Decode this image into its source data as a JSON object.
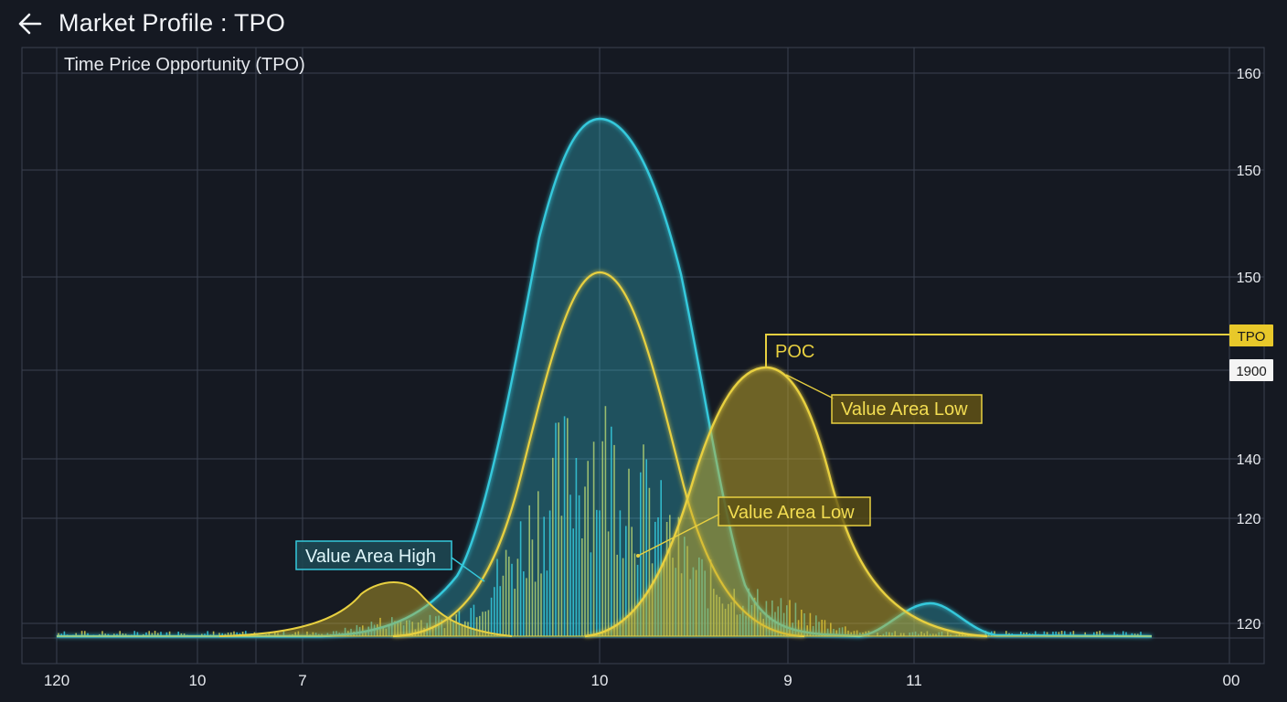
{
  "header": {
    "title": "Market Profile : TPO",
    "back_icon": "arrow-left-icon"
  },
  "colors": {
    "background": "#151922",
    "grid": "#3a4150",
    "cyan": "#35c9dc",
    "yellow": "#e8d040",
    "text": "#e6e9ee"
  },
  "chart_data": {
    "type": "area",
    "title": "Time Price Opportunity (TPO)",
    "x_tick_labels": [
      "120",
      "10",
      "7",
      "10",
      "9",
      "11",
      "00"
    ],
    "y_tick_labels": [
      "160",
      "150",
      "150",
      "140",
      "120",
      "120"
    ],
    "grid": true,
    "series": [
      {
        "name": "",
        "color": "#35c9dc"
      },
      {
        "name": "",
        "color": "#e8d040"
      }
    ],
    "annotations": [
      {
        "label": "POC"
      },
      {
        "label": "Value Area Low"
      },
      {
        "label": "Value Area Low"
      },
      {
        "label": "Value Area High"
      }
    ],
    "badges": [
      {
        "label": "TPO"
      },
      {
        "label": "1900"
      }
    ]
  }
}
